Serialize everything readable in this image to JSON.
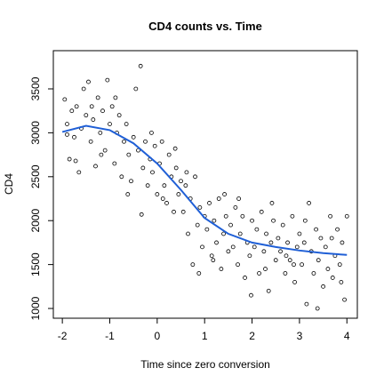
{
  "chart_data": {
    "type": "scatter",
    "title": "CD4 counts vs. Time",
    "x_label": "Time since zero conversion",
    "y_label": "CD4",
    "xlim": [
      -2.19,
      4.22
    ],
    "ylim": [
      889,
      3935
    ],
    "xticks": [
      -2,
      -1,
      0,
      1,
      2,
      3,
      4
    ],
    "yticks": [
      1000,
      1500,
      2000,
      2500,
      3000,
      3500
    ],
    "points": {
      "x": [
        -1.95,
        -1.9,
        -1.85,
        -1.8,
        -1.75,
        -1.7,
        -1.65,
        -1.6,
        -1.55,
        -1.5,
        -1.9,
        -1.72,
        -1.45,
        -1.4,
        -1.35,
        -1.3,
        -1.25,
        -1.2,
        -1.15,
        -1.1,
        -1.05,
        -1.0,
        -1.38,
        -1.18,
        -0.95,
        -0.9,
        -0.85,
        -0.8,
        -0.75,
        -0.7,
        -0.65,
        -0.6,
        -0.55,
        -0.5,
        -0.88,
        -0.62,
        -0.45,
        -0.4,
        -0.35,
        -0.3,
        -0.25,
        -0.2,
        -0.15,
        -0.1,
        -0.05,
        0,
        -0.33,
        -0.12,
        0.05,
        0.1,
        0.15,
        0.2,
        0.25,
        0.3,
        0.35,
        0.4,
        0.45,
        0.5,
        0.12,
        0.38,
        0.55,
        0.6,
        0.65,
        0.7,
        0.75,
        0.8,
        0.85,
        0.9,
        0.95,
        1.0,
        0.62,
        0.88,
        1.05,
        1.1,
        1.15,
        1.2,
        1.25,
        1.3,
        1.35,
        1.4,
        1.45,
        1.5,
        1.18,
        1.42,
        1.55,
        1.6,
        1.65,
        1.7,
        1.75,
        1.8,
        1.85,
        1.9,
        1.95,
        2.0,
        1.98,
        1.72,
        2.05,
        2.1,
        2.15,
        2.2,
        2.25,
        2.3,
        2.35,
        2.4,
        2.45,
        2.5,
        2.28,
        2.42,
        2.55,
        2.6,
        2.65,
        2.7,
        2.75,
        2.8,
        2.85,
        2.9,
        2.95,
        3.0,
        2.72,
        2.88,
        3.05,
        3.1,
        3.15,
        3.2,
        3.25,
        3.3,
        3.35,
        3.4,
        3.45,
        3.5,
        3.12,
        3.38,
        3.55,
        3.6,
        3.65,
        3.7,
        3.75,
        3.8,
        3.85,
        3.9,
        3.95,
        4.0,
        3.68,
        3.88
      ],
      "y": [
        3380,
        3100,
        2700,
        3250,
        2950,
        3300,
        2550,
        3050,
        3500,
        3200,
        2980,
        2680,
        3580,
        2900,
        3150,
        2620,
        3400,
        3000,
        3250,
        2800,
        3600,
        3100,
        3300,
        2750,
        3300,
        2650,
        3000,
        3200,
        2500,
        2900,
        3100,
        2750,
        2450,
        2950,
        3400,
        2300,
        3500,
        2800,
        3760,
        2600,
        2900,
        2400,
        2700,
        2550,
        2850,
        2300,
        2070,
        3000,
        2650,
        2900,
        2400,
        2200,
        2750,
        2500,
        2100,
        2600,
        2300,
        2450,
        2250,
        2820,
        2100,
        2400,
        1850,
        2250,
        1500,
        2500,
        1950,
        2150,
        1700,
        2050,
        2550,
        1400,
        1900,
        2200,
        1600,
        2000,
        1750,
        2250,
        1450,
        1850,
        2050,
        1650,
        1550,
        2300,
        1950,
        1700,
        2150,
        1500,
        1850,
        2050,
        1350,
        1750,
        1600,
        2000,
        1150,
        2250,
        1700,
        1900,
        1400,
        2100,
        1650,
        1850,
        1200,
        1750,
        2000,
        1550,
        1450,
        2200,
        1800,
        1650,
        1950,
        1400,
        1750,
        1550,
        2050,
        1300,
        1700,
        1850,
        1600,
        1500,
        1500,
        1750,
        1050,
        2200,
        1650,
        1400,
        1900,
        1550,
        1800,
        1250,
        2000,
        1000,
        1700,
        1450,
        2050,
        1350,
        1600,
        1900,
        1500,
        1750,
        1100,
        2050,
        1800,
        1300
      ]
    },
    "smooth": {
      "color": "#1f5fd6",
      "x": [
        -2,
        -1.5,
        -1,
        -0.5,
        0,
        0.5,
        1,
        1.5,
        2,
        2.5,
        3,
        3.5,
        4
      ],
      "y": [
        3010,
        3080,
        3030,
        2880,
        2650,
        2350,
        2030,
        1850,
        1750,
        1700,
        1660,
        1630,
        1610
      ]
    }
  }
}
